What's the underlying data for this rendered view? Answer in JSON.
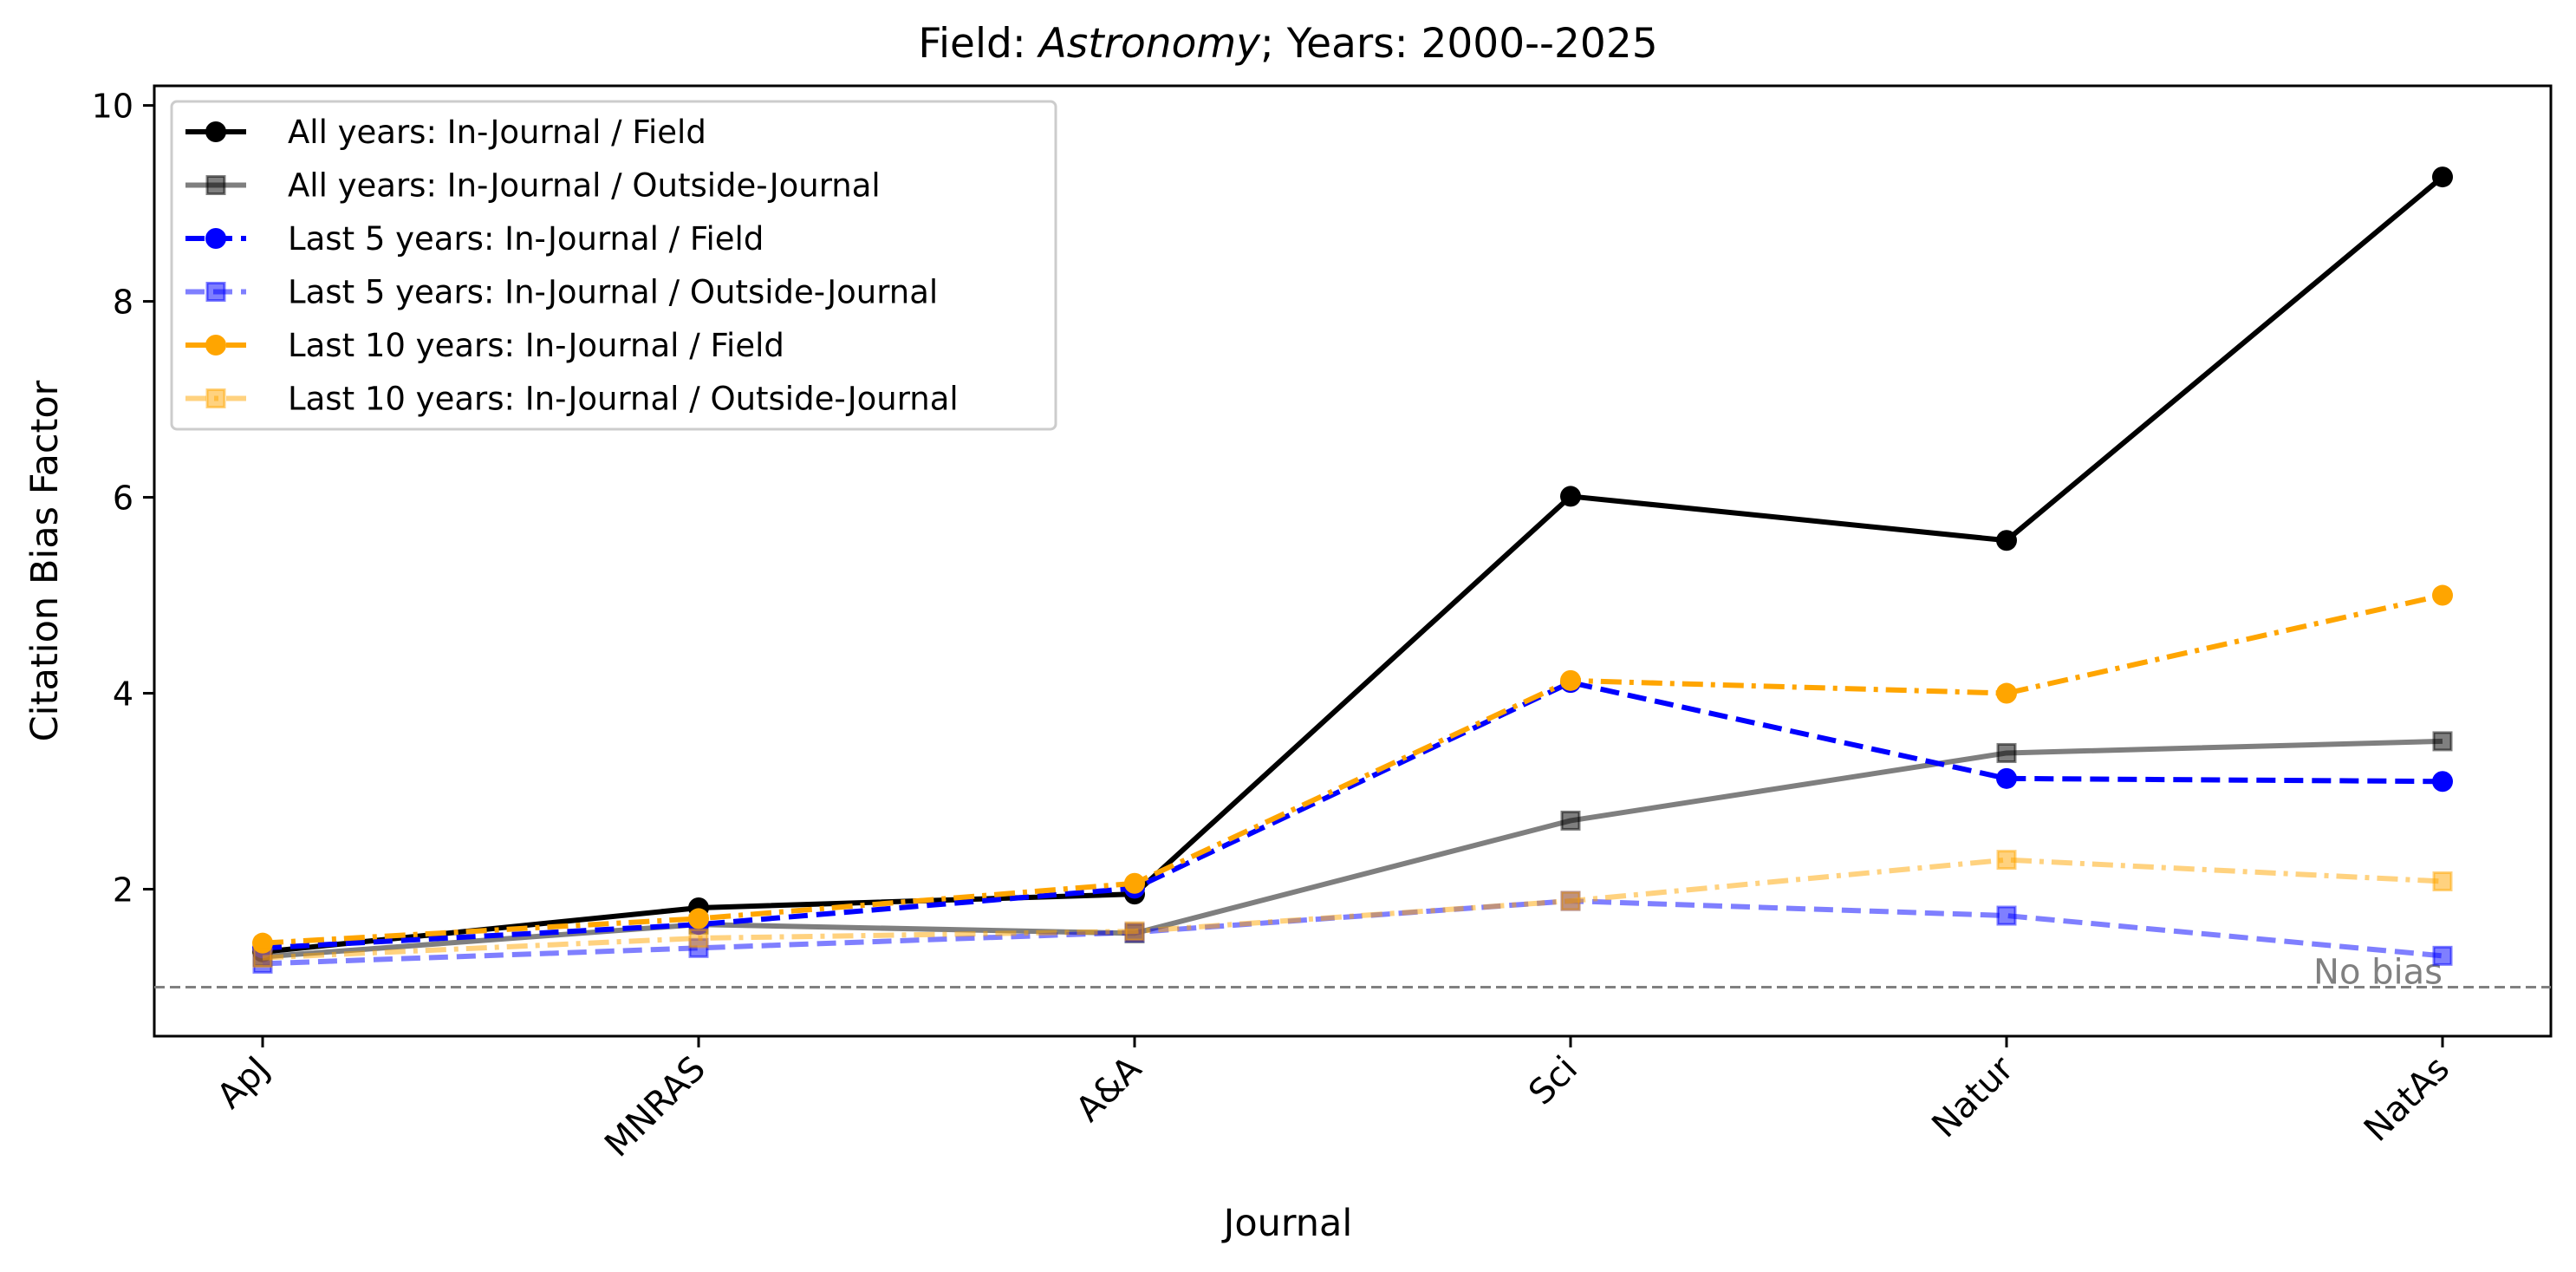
{
  "chart_data": {
    "type": "line",
    "title_prefix": "Field: ",
    "title_field": "Astronomy",
    "title_suffix": "; Years: 2000--2025",
    "xlabel": "Journal",
    "ylabel": "Citation Bias Factor",
    "categories": [
      "ApJ",
      "MNRAS",
      "A&A",
      "Sci",
      "Natur",
      "NatAs"
    ],
    "ylim": [
      0.5,
      10.2
    ],
    "yticks": [
      2,
      4,
      6,
      8,
      10
    ],
    "grid": false,
    "legend_position": "upper-left",
    "reference_line": {
      "y": 1.0,
      "label": "No bias",
      "color": "#808080"
    },
    "series": [
      {
        "name": "All years: In-Journal / Field",
        "values": [
          1.36,
          1.81,
          1.95,
          6.01,
          5.56,
          9.27
        ],
        "color": "#000000",
        "opacity": 1.0,
        "dash": "solid",
        "marker": "circle"
      },
      {
        "name": "All years: In-Journal / Outside-Journal",
        "values": [
          1.31,
          1.64,
          1.55,
          2.7,
          3.39,
          3.51
        ],
        "color": "#000000",
        "opacity": 0.5,
        "dash": "solid",
        "marker": "square"
      },
      {
        "name": "Last 5 years: In-Journal / Field",
        "values": [
          1.4,
          1.64,
          2.01,
          4.11,
          3.13,
          3.1
        ],
        "color": "#0000ff",
        "opacity": 1.0,
        "dash": "dashed",
        "marker": "circle"
      },
      {
        "name": "Last 5 years: In-Journal / Outside-Journal",
        "values": [
          1.24,
          1.4,
          1.56,
          1.88,
          1.73,
          1.32
        ],
        "color": "#0000ff",
        "opacity": 0.5,
        "dash": "dashed",
        "marker": "square"
      },
      {
        "name": "Last 10 years: In-Journal / Field",
        "values": [
          1.45,
          1.7,
          2.06,
          4.13,
          4.0,
          5.0
        ],
        "color": "#ffa500",
        "opacity": 1.0,
        "dash": "dashdot",
        "marker": "circle"
      },
      {
        "name": "Last 10 years: In-Journal / Outside-Journal",
        "values": [
          1.3,
          1.5,
          1.57,
          1.88,
          2.3,
          2.08
        ],
        "color": "#ffa500",
        "opacity": 0.5,
        "dash": "dashdot",
        "marker": "square"
      }
    ]
  }
}
